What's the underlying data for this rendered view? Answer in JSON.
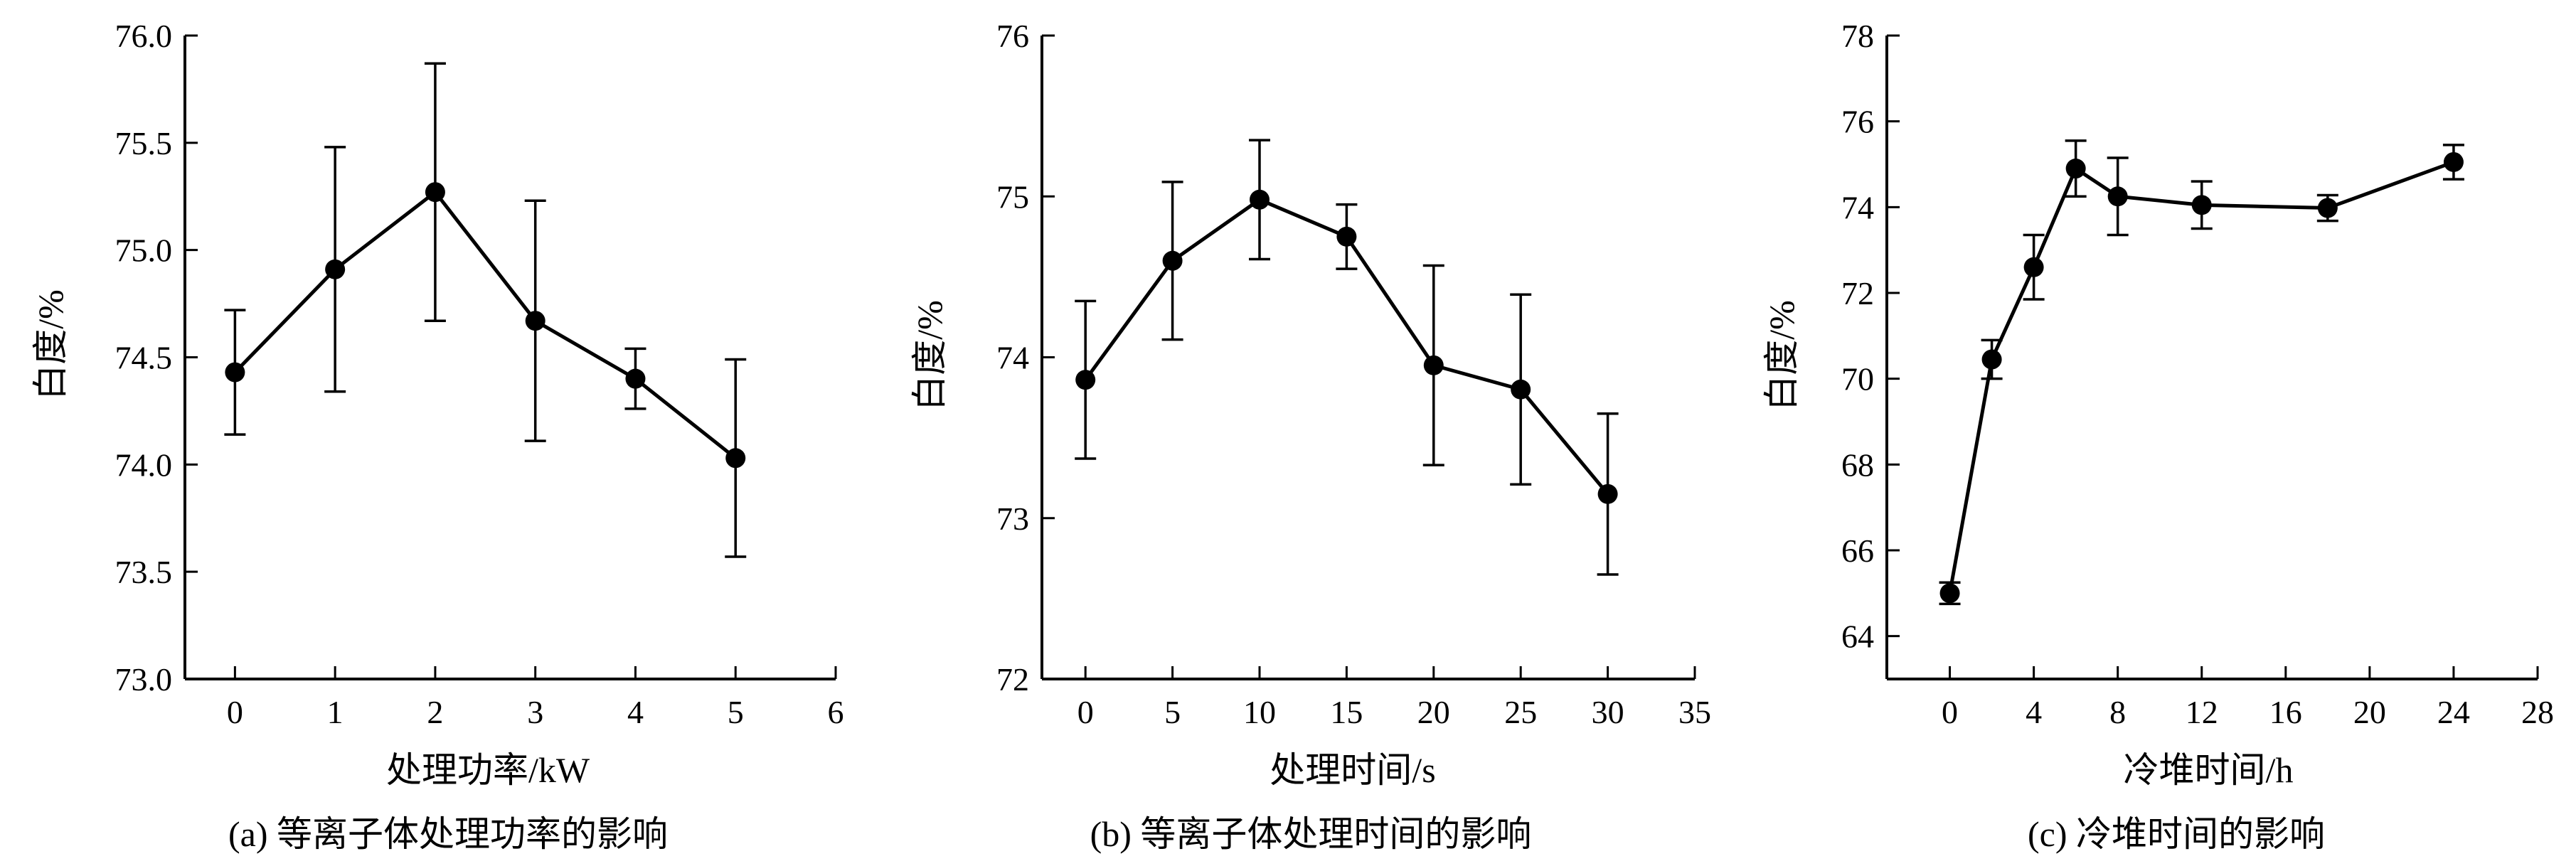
{
  "chart_data": [
    {
      "type": "line",
      "caption": "(a) 等离子体处理功率的影响",
      "xlabel": "处理功率/kW",
      "ylabel": "白度/%",
      "xlim": [
        -0.5,
        6
      ],
      "ylim": [
        73.0,
        76.0
      ],
      "xticks": [
        "0",
        "1",
        "2",
        "3",
        "4",
        "5",
        "6"
      ],
      "xtick_values": [
        0,
        1,
        2,
        3,
        4,
        5,
        6
      ],
      "yticks": [
        "73.0",
        "73.5",
        "74.0",
        "74.5",
        "75.0",
        "75.5",
        "76.0"
      ],
      "ytick_values": [
        73.0,
        73.5,
        74.0,
        74.5,
        75.0,
        75.5,
        76.0
      ],
      "x": [
        0,
        1,
        2,
        3,
        4,
        5
      ],
      "y": [
        74.43,
        74.91,
        75.27,
        74.67,
        74.4,
        74.03
      ],
      "error": [
        0.29,
        0.57,
        0.6,
        0.56,
        0.14,
        0.46
      ]
    },
    {
      "type": "line",
      "caption": "(b) 等离子体处理时间的影响",
      "xlabel": "处理时间/s",
      "ylabel": "白度/%",
      "xlim": [
        -2.5,
        35
      ],
      "ylim": [
        72,
        76
      ],
      "xticks": [
        "0",
        "5",
        "10",
        "15",
        "20",
        "25",
        "30",
        "35"
      ],
      "xtick_values": [
        0,
        5,
        10,
        15,
        20,
        25,
        30,
        35
      ],
      "yticks": [
        "72",
        "73",
        "74",
        "75",
        "76"
      ],
      "ytick_values": [
        72,
        73,
        74,
        75,
        76
      ],
      "x": [
        0,
        5,
        10,
        15,
        20,
        25,
        30
      ],
      "y": [
        73.86,
        74.6,
        74.98,
        74.75,
        73.95,
        73.8,
        73.15
      ],
      "error": [
        0.49,
        0.49,
        0.37,
        0.2,
        0.62,
        0.59,
        0.5
      ]
    },
    {
      "type": "line",
      "caption": "(c) 冷堆时间的影响",
      "xlabel": "冷堆时间/h",
      "ylabel": "白度/%",
      "xlim": [
        -3,
        28
      ],
      "ylim": [
        63,
        78
      ],
      "xticks": [
        "0",
        "4",
        "8",
        "12",
        "16",
        "20",
        "24",
        "28"
      ],
      "xtick_values": [
        0,
        4,
        8,
        12,
        16,
        20,
        24,
        28
      ],
      "yticks": [
        "64",
        "66",
        "68",
        "70",
        "72",
        "74",
        "76",
        "78"
      ],
      "ytick_values": [
        64,
        66,
        68,
        70,
        72,
        74,
        76,
        78
      ],
      "x": [
        0,
        2,
        4,
        6,
        8,
        12,
        18,
        24
      ],
      "y": [
        65.0,
        70.45,
        72.6,
        74.9,
        74.25,
        74.05,
        73.98,
        75.05
      ],
      "error": [
        0.25,
        0.45,
        0.75,
        0.65,
        0.9,
        0.55,
        0.3,
        0.4
      ]
    }
  ]
}
